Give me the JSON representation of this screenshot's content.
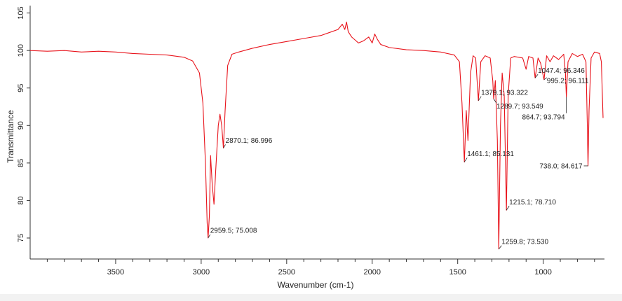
{
  "chart_data": {
    "type": "line",
    "xlabel": "Wavenumber (cm-1)",
    "ylabel": "Transmittance",
    "xlim": [
      4000,
      650
    ],
    "ylim": [
      72.2,
      105.8
    ],
    "xticks": [
      3500,
      3000,
      2500,
      2000,
      1500,
      1000
    ],
    "xminorticks": [
      3900,
      3800,
      3700,
      3600,
      3400,
      3300,
      3200,
      3100,
      2900,
      2800,
      2700,
      2600,
      2400,
      2300,
      2200,
      2100,
      1900,
      1800,
      1700,
      1600,
      1400,
      1300,
      1200,
      1100,
      900,
      800,
      700
    ],
    "yticks": [
      75,
      80,
      85,
      90,
      95,
      100,
      105
    ],
    "series": [
      {
        "color": "#e8131b",
        "x": [
          4000,
          3900,
          3800,
          3700,
          3600,
          3500,
          3400,
          3300,
          3200,
          3100,
          3050,
          3010,
          2990,
          2975,
          2965,
          2959.5,
          2952,
          2945,
          2935,
          2925,
          2915,
          2900,
          2890,
          2880,
          2870.1,
          2860,
          2845,
          2820,
          2780,
          2700,
          2600,
          2500,
          2400,
          2300,
          2250,
          2200,
          2175,
          2160,
          2150,
          2140,
          2120,
          2080,
          2050,
          2020,
          2000,
          1985,
          1970,
          1950,
          1900,
          1800,
          1700,
          1600,
          1520,
          1490,
          1475,
          1461.1,
          1450,
          1440,
          1425,
          1410,
          1395,
          1379.1,
          1365,
          1340,
          1310,
          1295,
          1289.7,
          1280,
          1268,
          1259.8,
          1250,
          1240,
          1228,
          1215.1,
          1205,
          1190,
          1170,
          1120,
          1100,
          1085,
          1060,
          1047.4,
          1030,
          1015,
          995.2,
          980,
          960,
          940,
          910,
          880,
          870,
          864.7,
          855,
          830,
          800,
          770,
          750,
          742,
          738,
          732,
          720,
          700,
          670,
          660,
          650
        ],
        "values": [
          100.0,
          99.9,
          100.0,
          99.8,
          99.9,
          99.8,
          99.6,
          99.5,
          99.4,
          99.1,
          98.6,
          97.0,
          93,
          85,
          77,
          75.008,
          78,
          86,
          82,
          79.5,
          84,
          90,
          91.5,
          90,
          86.996,
          92,
          98,
          99.5,
          99.8,
          100.3,
          100.8,
          101.2,
          101.6,
          102.0,
          102.4,
          102.8,
          103.5,
          102.8,
          103.8,
          102.5,
          101.8,
          101.0,
          101.3,
          101.8,
          101.0,
          102.2,
          101.5,
          100.8,
          100.4,
          100.1,
          100.0,
          99.8,
          99.4,
          98.5,
          93,
          85.131,
          92,
          88,
          97,
          99.3,
          99.0,
          93.322,
          98.5,
          99.3,
          99.0,
          96,
          93.549,
          96,
          88,
          73.53,
          90,
          97,
          94,
          78.71,
          94,
          99.0,
          99.2,
          99.0,
          97.5,
          99.2,
          99.0,
          96.346,
          99.0,
          98.3,
          96.111,
          99.3,
          98.5,
          99.3,
          98.8,
          99.5,
          97,
          93.794,
          98.5,
          99.6,
          99.2,
          99.5,
          98.5,
          90,
          84.617,
          92,
          99,
          99.8,
          99.6,
          98.5,
          91
        ]
      }
    ],
    "annotations": [
      {
        "x": 2959.5,
        "y": 75.008,
        "label": "2959.5; 75.008"
      },
      {
        "x": 2870.1,
        "y": 86.996,
        "label": "2870.1; 86.996"
      },
      {
        "x": 1461.1,
        "y": 85.131,
        "label": "1461.1; 85.131"
      },
      {
        "x": 1379.1,
        "y": 93.322,
        "label": "1379.1; 93.322"
      },
      {
        "x": 1289.7,
        "y": 93.549,
        "label": "1289.7; 93.549"
      },
      {
        "x": 864.7,
        "y": 93.794,
        "label": "864.7; 93.794"
      },
      {
        "x": 1047.4,
        "y": 96.346,
        "label": "1047.4; 96.346"
      },
      {
        "x": 995.2,
        "y": 96.111,
        "label": "995.2; 96.111"
      },
      {
        "x": 738.0,
        "y": 84.617,
        "label": "738.0; 84.617"
      },
      {
        "x": 1215.1,
        "y": 78.71,
        "label": "1215.1; 78.710"
      },
      {
        "x": 1259.8,
        "y": 73.53,
        "label": "1259.8; 73.530"
      }
    ]
  }
}
